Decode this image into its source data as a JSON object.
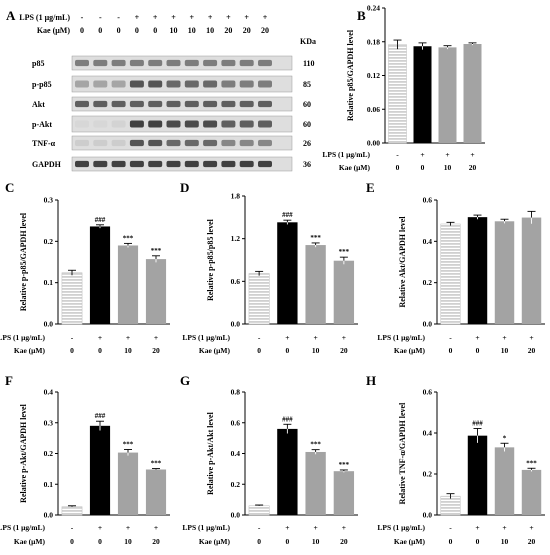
{
  "blot": {
    "letter": "A",
    "header_rows": [
      {
        "label": "LPS (1 μg/mL)",
        "values": [
          "-",
          "-",
          "-",
          "+",
          "+",
          "+",
          "+",
          "+",
          "+",
          "+",
          "+"
        ]
      },
      {
        "label": "Kae (μM)",
        "values": [
          "0",
          "0",
          "0",
          "0",
          "0",
          "10",
          "10",
          "10",
          "20",
          "20",
          "20"
        ]
      }
    ],
    "kda_header": "KDa",
    "bands": [
      {
        "name": "p85",
        "kda": "110"
      },
      {
        "name": "p-p85",
        "kda": "85"
      },
      {
        "name": "Akt",
        "kda": "60"
      },
      {
        "name": "p-Akt",
        "kda": "60"
      },
      {
        "name": "TNF-α",
        "kda": "26"
      },
      {
        "name": "GAPDH",
        "kda": "36"
      }
    ]
  },
  "condition_rows": [
    {
      "label": "LPS (1 μg/mL)",
      "values": [
        "-",
        "+",
        "+",
        "+"
      ]
    },
    {
      "label": "Kae (μM)",
      "values": [
        "0",
        "0",
        "10",
        "20"
      ]
    }
  ],
  "colors": {
    "control_fill": "#d4d4d4",
    "lps_fill": "#000000",
    "kae_fill": "#a3a3a3",
    "stripe": "#ffffff"
  },
  "chart_data": [
    {
      "letter": "B",
      "type": "bar",
      "ylabel": "Relative p85/GAPDH level",
      "values": [
        0.175,
        0.172,
        0.17,
        0.176
      ],
      "errors": [
        0.008,
        0.006,
        0.003,
        0.002
      ],
      "ylim": [
        0,
        0.24
      ],
      "yticks": [
        0.0,
        0.06,
        0.12,
        0.18,
        0.24
      ],
      "ytick_labels": [
        "0.00",
        "0.06",
        "0.12",
        "0.18",
        "0.24"
      ],
      "significance": [
        "",
        "",
        "",
        ""
      ]
    },
    {
      "letter": "C",
      "type": "bar",
      "ylabel": "Relative p-p85/GAPDH level",
      "values": [
        0.124,
        0.236,
        0.19,
        0.157
      ],
      "errors": [
        0.006,
        0.004,
        0.005,
        0.008
      ],
      "ylim": [
        0,
        0.3
      ],
      "yticks": [
        0.0,
        0.1,
        0.2,
        0.3
      ],
      "ytick_labels": [
        "0.0",
        "0.1",
        "0.2",
        "0.3"
      ],
      "significance": [
        "",
        "###",
        "***",
        "***"
      ]
    },
    {
      "letter": "D",
      "type": "bar",
      "ylabel": "Relative p-p85/p85 level",
      "values": [
        0.71,
        1.43,
        1.11,
        0.89
      ],
      "errors": [
        0.03,
        0.03,
        0.03,
        0.05
      ],
      "ylim": [
        0,
        1.8
      ],
      "yticks": [
        0.0,
        0.6,
        1.2,
        1.8
      ],
      "ytick_labels": [
        "0.0",
        "0.6",
        "1.2",
        "1.8"
      ],
      "significance": [
        "",
        "###",
        "***",
        "***"
      ]
    },
    {
      "letter": "E",
      "type": "bar",
      "ylabel": "Relative Akt/GAPDH level",
      "values": [
        0.484,
        0.517,
        0.497,
        0.515
      ],
      "errors": [
        0.008,
        0.01,
        0.01,
        0.03
      ],
      "ylim": [
        0,
        0.6
      ],
      "yticks": [
        0.0,
        0.2,
        0.4,
        0.6
      ],
      "ytick_labels": [
        "0.0",
        "0.2",
        "0.4",
        "0.6"
      ],
      "significance": [
        "",
        "",
        "",
        ""
      ]
    },
    {
      "letter": "F",
      "type": "bar",
      "ylabel": "Relative p-Akt/GAPDH level",
      "values": [
        0.027,
        0.29,
        0.203,
        0.148
      ],
      "errors": [
        0.003,
        0.015,
        0.01,
        0.003
      ],
      "ylim": [
        0,
        0.4
      ],
      "yticks": [
        0.0,
        0.1,
        0.2,
        0.3,
        0.4
      ],
      "ytick_labels": [
        "0.0",
        "0.1",
        "0.2",
        "0.3",
        "0.4"
      ],
      "significance": [
        "",
        "###",
        "***",
        "***"
      ]
    },
    {
      "letter": "G",
      "type": "bar",
      "ylabel": "Relative p-Akt/Akt level",
      "values": [
        0.06,
        0.56,
        0.41,
        0.285
      ],
      "errors": [
        0.005,
        0.03,
        0.015,
        0.008
      ],
      "ylim": [
        0,
        0.8
      ],
      "yticks": [
        0.0,
        0.2,
        0.4,
        0.6,
        0.8
      ],
      "ytick_labels": [
        "0.0",
        "0.2",
        "0.4",
        "0.6",
        "0.8"
      ],
      "significance": [
        "",
        "###",
        "***",
        "***"
      ]
    },
    {
      "letter": "H",
      "type": "bar",
      "ylabel": "Relative TNF-α/GAPDH level",
      "values": [
        0.092,
        0.387,
        0.33,
        0.22
      ],
      "errors": [
        0.012,
        0.035,
        0.02,
        0.008
      ],
      "ylim": [
        0,
        0.6
      ],
      "yticks": [
        0.0,
        0.2,
        0.4,
        0.6
      ],
      "ytick_labels": [
        "0.0",
        "0.2",
        "0.4",
        "0.6"
      ],
      "significance": [
        "",
        "###",
        "*",
        "***"
      ]
    }
  ]
}
